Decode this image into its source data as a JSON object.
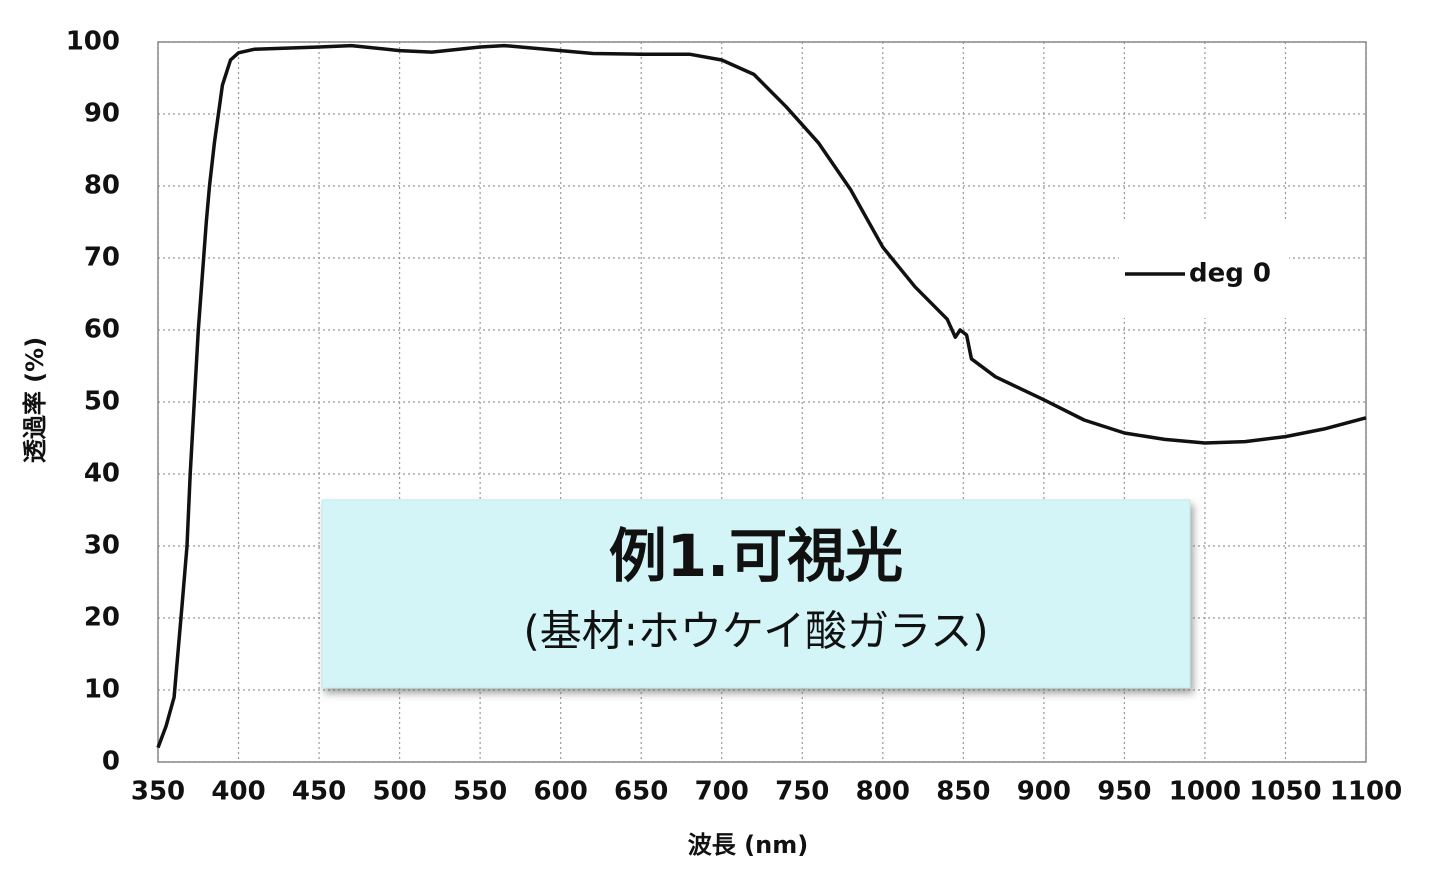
{
  "chart_data": {
    "type": "line",
    "x_label": "波長 (nm)",
    "y_label": "透過率 (%)",
    "x": [
      350,
      355,
      360,
      365,
      368,
      370,
      375,
      380,
      382,
      385,
      390,
      395,
      400,
      410,
      450,
      470,
      500,
      520,
      550,
      565,
      600,
      620,
      650,
      680,
      700,
      720,
      740,
      750,
      760,
      780,
      800,
      820,
      840,
      845,
      848,
      852,
      855,
      870,
      900,
      925,
      950,
      975,
      1000,
      1025,
      1050,
      1075,
      1100
    ],
    "series": [
      {
        "name": "deg 0",
        "color": "#111111",
        "values": [
          2,
          5,
          9,
          22,
          30,
          40,
          60,
          75,
          80,
          86,
          94,
          97.5,
          98.5,
          99,
          99.3,
          99.5,
          98.8,
          98.6,
          99.3,
          99.5,
          98.8,
          98.4,
          98.3,
          98.3,
          97.5,
          95.5,
          91,
          88.5,
          86,
          79.5,
          71.5,
          66,
          61.5,
          59,
          60,
          59.3,
          56,
          53.5,
          50.3,
          47.5,
          45.7,
          44.8,
          44.3,
          44.5,
          45.2,
          46.3,
          47.8
        ]
      }
    ],
    "xlim": [
      350,
      1100
    ],
    "xticks": [
      350,
      400,
      450,
      500,
      550,
      600,
      650,
      700,
      750,
      800,
      850,
      900,
      950,
      1000,
      1050,
      1100
    ],
    "ylim": [
      0,
      100
    ],
    "yticks": [
      0,
      10,
      20,
      30,
      40,
      50,
      60,
      70,
      80,
      90,
      100
    ],
    "grid": true,
    "legend": "upper right",
    "annotation": {
      "title": "例1.可視光",
      "subtitle": "(基材:ホウケイ酸ガラス)"
    }
  }
}
